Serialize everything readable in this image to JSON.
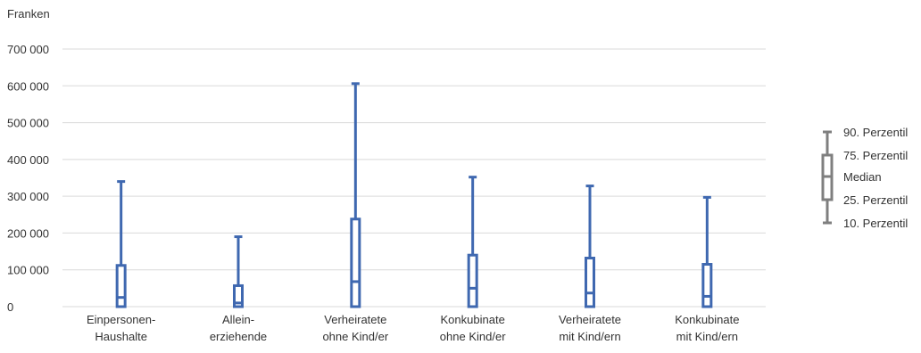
{
  "chart_data": {
    "type": "boxplot",
    "unit_label": "Franken",
    "y_ticks": [
      "700 000",
      "600 000",
      "500 000",
      "400 000",
      "300 000",
      "200 000",
      "100 000",
      "0"
    ],
    "y_tick_values": [
      700000,
      600000,
      500000,
      400000,
      300000,
      200000,
      100000,
      0
    ],
    "ylim": [
      0,
      700000
    ],
    "grid": true,
    "legend_position": "right",
    "categories": [
      {
        "line1": "Einpersonen-",
        "line2": "Haushalte"
      },
      {
        "line1": "Allein-",
        "line2": "erziehende"
      },
      {
        "line1": "Verheiratete",
        "line2": "ohne Kind/er"
      },
      {
        "line1": "Konkubinate",
        "line2": "ohne Kind/er"
      },
      {
        "line1": "Verheiratete",
        "line2": "mit Kind/ern"
      },
      {
        "line1": "Konkubinate",
        "line2": "mit Kind/ern"
      }
    ],
    "boxes": [
      {
        "p10": 0,
        "p25": 0,
        "median": 25000,
        "p75": 112000,
        "p90": 340000
      },
      {
        "p10": 0,
        "p25": 0,
        "median": 10000,
        "p75": 57000,
        "p90": 190000
      },
      {
        "p10": 0,
        "p25": 0,
        "median": 68000,
        "p75": 238000,
        "p90": 606000
      },
      {
        "p10": 0,
        "p25": 0,
        "median": 50000,
        "p75": 140000,
        "p90": 352000
      },
      {
        "p10": 0,
        "p25": 0,
        "median": 37000,
        "p75": 132000,
        "p90": 328000
      },
      {
        "p10": 0,
        "p25": 0,
        "median": 28000,
        "p75": 115000,
        "p90": 297000
      }
    ],
    "legend": {
      "p90": "90. Perzentil",
      "p75": "75. Perzentil",
      "median": "Median",
      "p25": "25. Perzentil",
      "p10": "10. Perzentil"
    },
    "colors": {
      "series": "#3f68b0",
      "legend": "#7f7f7f",
      "grid": "#d9d9d9",
      "text": "#333333"
    }
  }
}
